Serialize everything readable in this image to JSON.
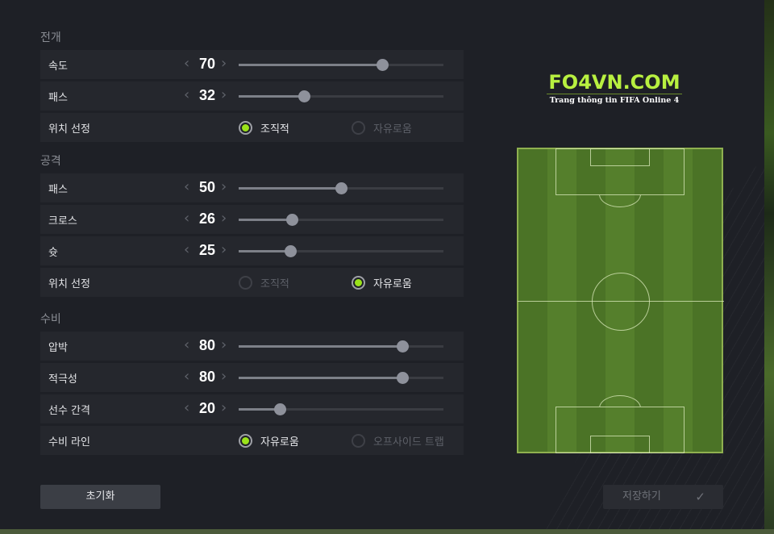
{
  "sections": [
    {
      "title": "전개",
      "rows": [
        {
          "type": "slider",
          "label": "속도",
          "value": 70
        },
        {
          "type": "slider",
          "label": "패스",
          "value": 32
        },
        {
          "type": "radio",
          "label": "위치 선정",
          "options": [
            "조직적",
            "자유로움"
          ],
          "selected": 0
        }
      ]
    },
    {
      "title": "공격",
      "rows": [
        {
          "type": "slider",
          "label": "패스",
          "value": 50
        },
        {
          "type": "slider",
          "label": "크로스",
          "value": 26
        },
        {
          "type": "slider",
          "label": "슛",
          "value": 25
        },
        {
          "type": "radio",
          "label": "위치 선정",
          "options": [
            "조직적",
            "자유로움"
          ],
          "selected": 1
        }
      ]
    },
    {
      "title": "수비",
      "rows": [
        {
          "type": "slider",
          "label": "압박",
          "value": 80
        },
        {
          "type": "slider",
          "label": "적극성",
          "value": 80
        },
        {
          "type": "slider",
          "label": "선수 간격",
          "value": 20
        },
        {
          "type": "radio",
          "label": "수비 라인",
          "options": [
            "자유로움",
            "오프사이드 트랩"
          ],
          "selected": 0
        }
      ]
    }
  ],
  "slider_range": [
    0,
    100
  ],
  "logo": {
    "title": "FO4VN.COM",
    "subtitle": "Trang thông tin FIFA Online 4"
  },
  "buttons": {
    "reset": "초기화",
    "save": "저장하기"
  },
  "icons": {
    "decrease": "chevron-left-icon",
    "increase": "chevron-right-icon",
    "save": "check-icon"
  },
  "colors": {
    "accent": "#9be31a",
    "pitch": "#4b7326"
  }
}
